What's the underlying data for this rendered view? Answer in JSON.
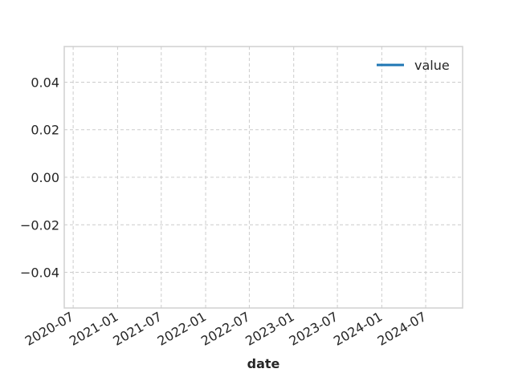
{
  "chart_data": {
    "type": "line",
    "title": "",
    "xlabel": "date",
    "ylabel": "",
    "x_ticks": [
      "2020-07",
      "2021-01",
      "2021-07",
      "2022-01",
      "2022-07",
      "2023-01",
      "2023-07",
      "2024-01",
      "2024-07"
    ],
    "xlim": [
      "2020-05-25",
      "2024-12-01"
    ],
    "y_ticks": [
      0.04,
      0.02,
      0.0,
      -0.02,
      -0.04
    ],
    "y_tick_labels": [
      "0.04",
      "0.02",
      "0.00",
      "−0.02",
      "−0.04"
    ],
    "ylim": [
      -0.055,
      0.055
    ],
    "grid": true,
    "legend_position": "top-right",
    "series": [
      {
        "name": "value",
        "color": "#1f77b4",
        "x": [],
        "y": []
      }
    ]
  }
}
